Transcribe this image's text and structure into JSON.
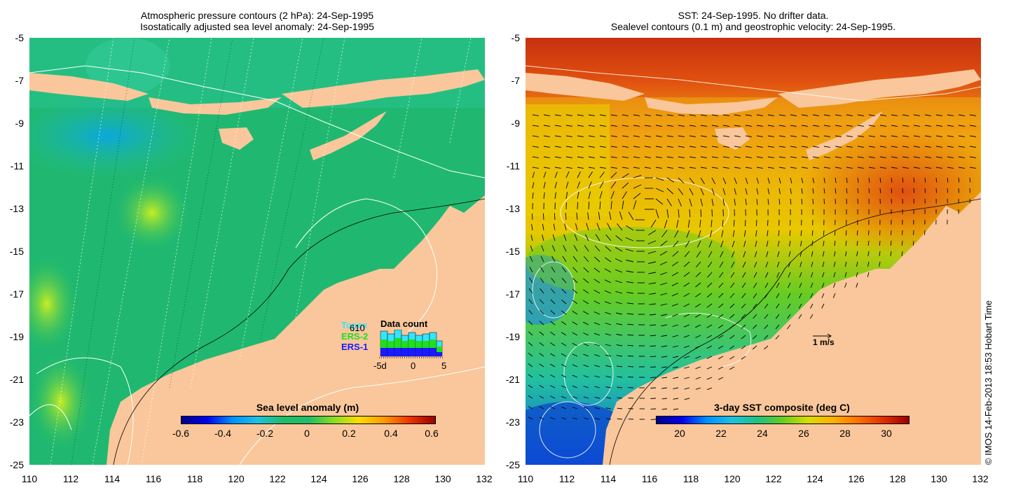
{
  "left_panel": {
    "title_line1": "Atmospheric pressure contours (2 hPa): 24-Sep-1995",
    "title_line2": "Isostatically adjusted sea level anomaly: 24-Sep-1995",
    "colorbar_title": "Sea level anomaly (m)",
    "colorbar_ticks": [
      "-0.6",
      "-0.4",
      "-0.2",
      "0",
      "0.2",
      "0.4",
      "0.6"
    ],
    "legend": {
      "title": "Data count",
      "count": "610",
      "satellites": [
        "Topex",
        "ERS-2",
        "ERS-1"
      ],
      "satellite_colors": [
        "#33e5ff",
        "#22dd22",
        "#1a1aff"
      ],
      "axis_ticks": [
        "-5d",
        "0",
        "5"
      ]
    }
  },
  "right_panel": {
    "title_line1": "SST: 24-Sep-1995. No drifter data.",
    "title_line2": "Sealevel contours (0.1 m) and geostrophic velocity: 24-Sep-1995.",
    "colorbar_title": "3-day SST composite (deg C)",
    "colorbar_ticks": [
      "20",
      "22",
      "24",
      "26",
      "28",
      "30"
    ],
    "scale_label": "1 m/s"
  },
  "axes": {
    "lat_ticks": [
      "-5",
      "-7",
      "-9",
      "-11",
      "-13",
      "-15",
      "-17",
      "-19",
      "-21",
      "-23",
      "-25"
    ],
    "lon_ticks": [
      "110",
      "112",
      "114",
      "116",
      "118",
      "120",
      "122",
      "124",
      "126",
      "128",
      "130",
      "132"
    ]
  },
  "credit": "© IMOS 14-Feb-2013 18:53 Hobart Time",
  "colors": {
    "land": "#f9c79b",
    "sea_left": "#22bb77",
    "sea_right": "#f0a020"
  }
}
